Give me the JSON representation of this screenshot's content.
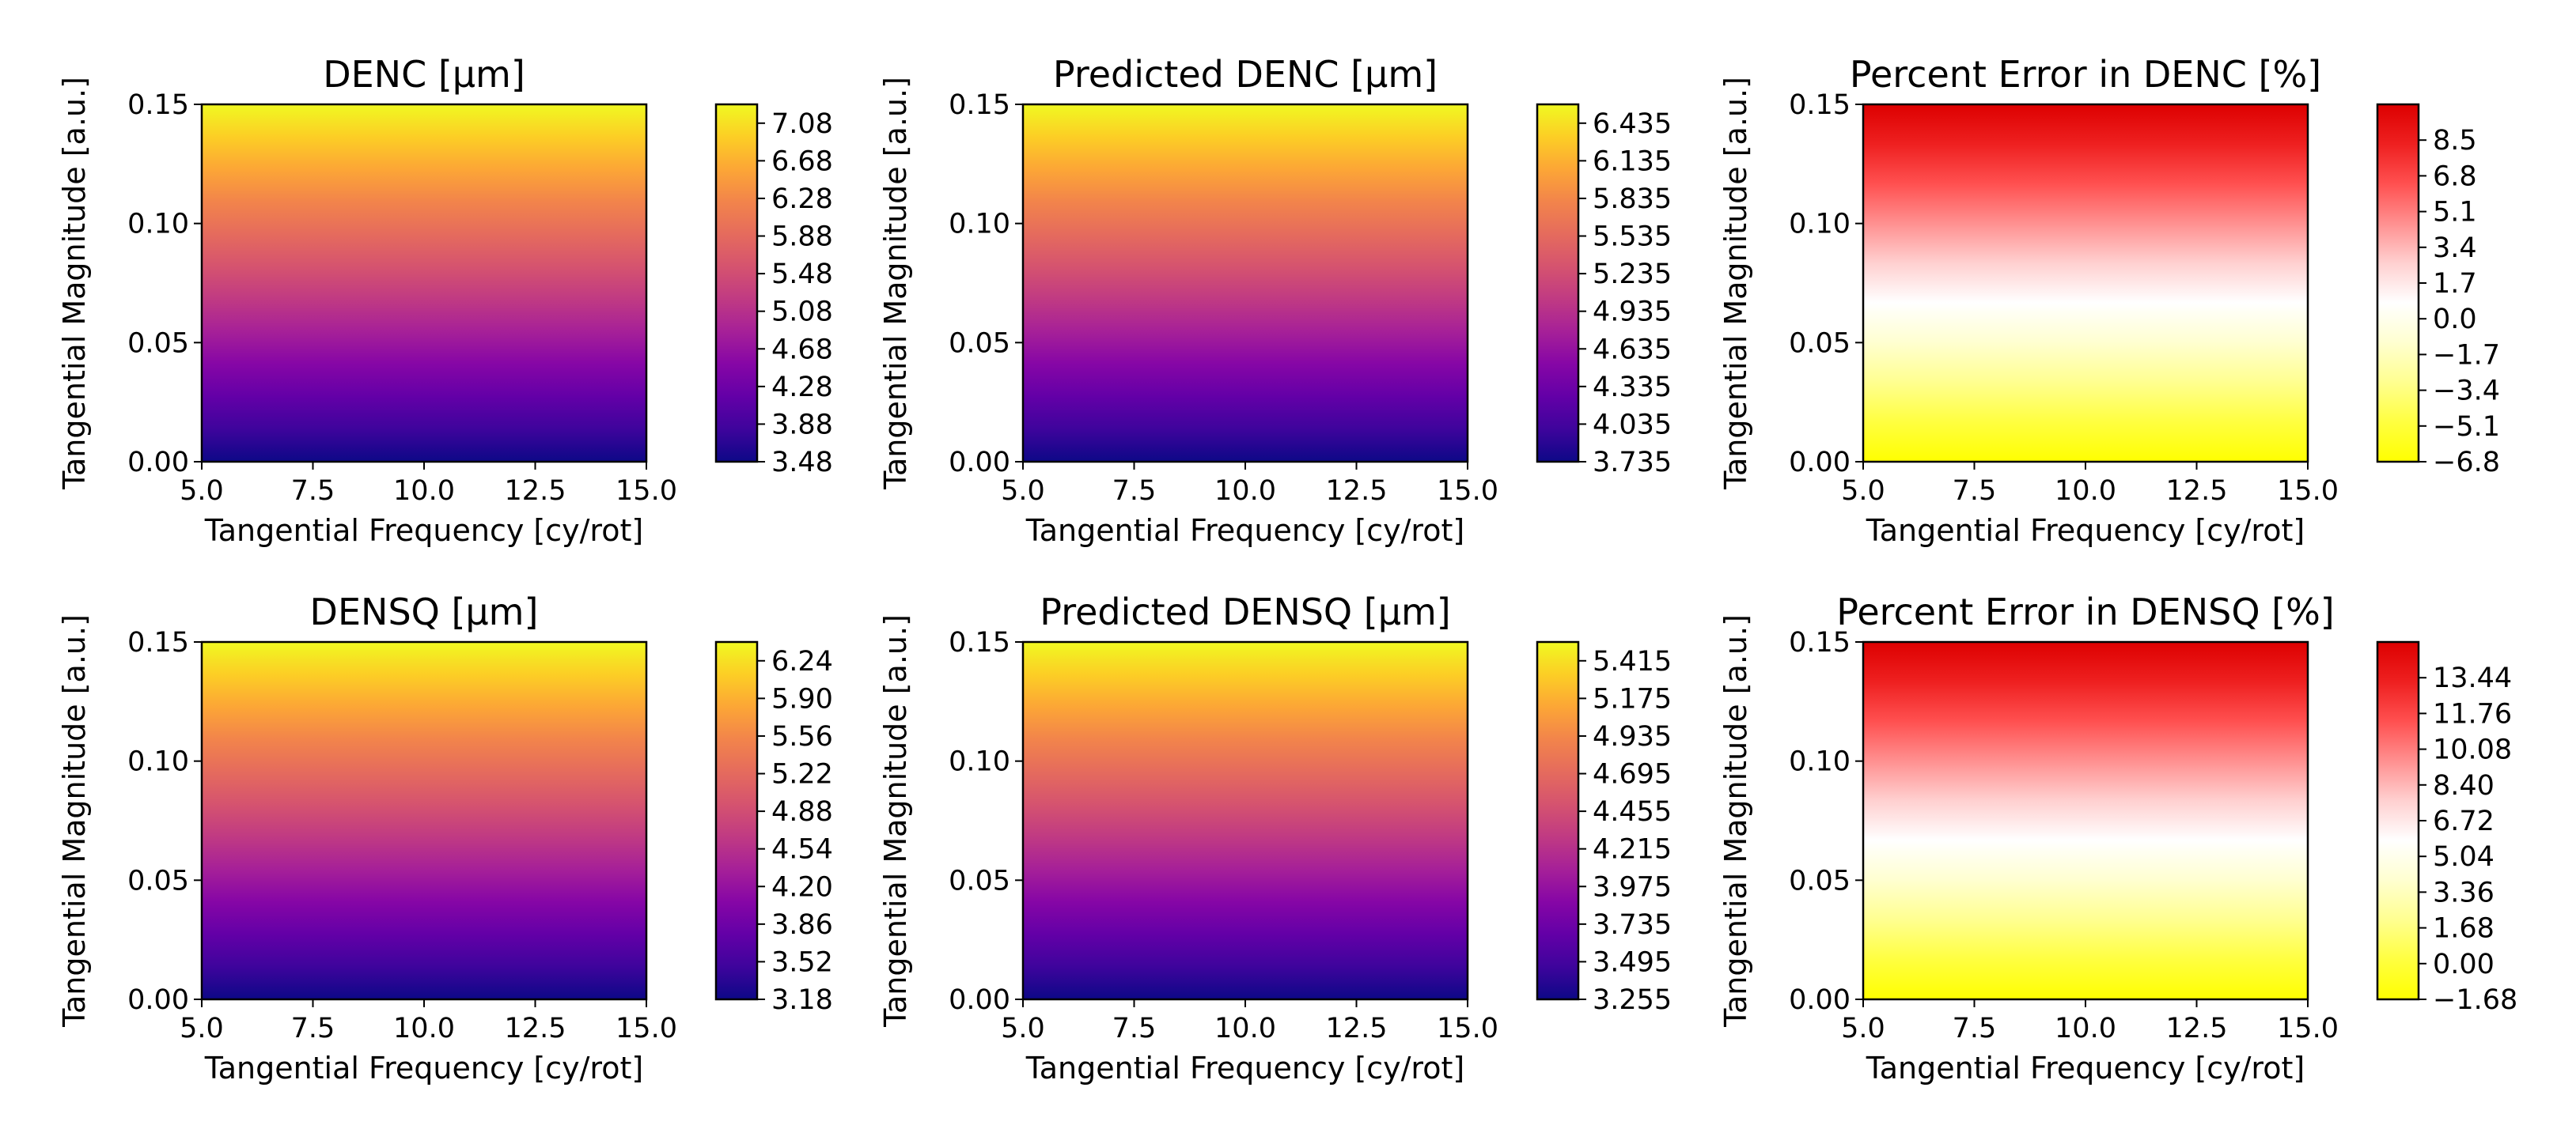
{
  "figure": {
    "layout": "2x3 grid of heatmaps with colorbars"
  },
  "chart_data": [
    {
      "type": "heatmap",
      "title": "DENC [µm]",
      "xlabel": "Tangential Frequency [cy/rot]",
      "ylabel": "Tangential Magnitude [a.u.]",
      "xlim": [
        5.0,
        15.0
      ],
      "ylim": [
        0.0,
        0.15
      ],
      "xticks": [
        "5.0",
        "7.5",
        "10.0",
        "12.5",
        "15.0"
      ],
      "yticks": [
        "0.00",
        "0.05",
        "0.10",
        "0.15"
      ],
      "colormap": "plasma",
      "value_range": [
        3.48,
        7.28
      ],
      "gradient": "varies along y only",
      "colorbar_ticks": [
        "3.48",
        "3.88",
        "4.28",
        "4.68",
        "5.08",
        "5.48",
        "5.88",
        "6.28",
        "6.68",
        "7.08"
      ]
    },
    {
      "type": "heatmap",
      "title": "Predicted DENC [µm]",
      "xlabel": "Tangential Frequency [cy/rot]",
      "ylabel": "Tangential Magnitude [a.u.]",
      "xlim": [
        5.0,
        15.0
      ],
      "ylim": [
        0.0,
        0.15
      ],
      "xticks": [
        "5.0",
        "7.5",
        "10.0",
        "12.5",
        "15.0"
      ],
      "yticks": [
        "0.00",
        "0.05",
        "0.10",
        "0.15"
      ],
      "colormap": "plasma",
      "value_range": [
        3.735,
        6.585
      ],
      "gradient": "varies along y only",
      "colorbar_ticks": [
        "3.735",
        "4.035",
        "4.335",
        "4.635",
        "4.935",
        "5.235",
        "5.535",
        "5.835",
        "6.135",
        "6.435"
      ]
    },
    {
      "type": "heatmap",
      "title": "Percent Error in DENC [%]",
      "xlabel": "Tangential Frequency [cy/rot]",
      "ylabel": "Tangential Magnitude [a.u.]",
      "xlim": [
        5.0,
        15.0
      ],
      "ylim": [
        0.0,
        0.15
      ],
      "xticks": [
        "5.0",
        "7.5",
        "10.0",
        "12.5",
        "15.0"
      ],
      "yticks": [
        "0.00",
        "0.05",
        "0.10",
        "0.15"
      ],
      "colormap": "yellow-white-red",
      "value_range": [
        -6.8,
        10.2
      ],
      "gradient": "varies along y only",
      "colorbar_ticks": [
        "−6.8",
        "−5.1",
        "−3.4",
        "−1.7",
        "0.0",
        "1.7",
        "3.4",
        "5.1",
        "6.8",
        "8.5"
      ]
    },
    {
      "type": "heatmap",
      "title": "DENSQ [µm]",
      "xlabel": "Tangential Frequency [cy/rot]",
      "ylabel": "Tangential Magnitude [a.u.]",
      "xlim": [
        5.0,
        15.0
      ],
      "ylim": [
        0.0,
        0.15
      ],
      "xticks": [
        "5.0",
        "7.5",
        "10.0",
        "12.5",
        "15.0"
      ],
      "yticks": [
        "0.00",
        "0.05",
        "0.10",
        "0.15"
      ],
      "colormap": "plasma",
      "value_range": [
        3.18,
        6.41
      ],
      "gradient": "varies along y only",
      "colorbar_ticks": [
        "3.18",
        "3.52",
        "3.86",
        "4.20",
        "4.54",
        "4.88",
        "5.22",
        "5.56",
        "5.90",
        "6.24"
      ]
    },
    {
      "type": "heatmap",
      "title": "Predicted DENSQ [µm]",
      "xlabel": "Tangential Frequency [cy/rot]",
      "ylabel": "Tangential Magnitude [a.u.]",
      "xlim": [
        5.0,
        15.0
      ],
      "ylim": [
        0.0,
        0.15
      ],
      "xticks": [
        "5.0",
        "7.5",
        "10.0",
        "12.5",
        "15.0"
      ],
      "yticks": [
        "0.00",
        "0.05",
        "0.10",
        "0.15"
      ],
      "colormap": "plasma",
      "value_range": [
        3.255,
        5.535
      ],
      "gradient": "varies along y only",
      "colorbar_ticks": [
        "3.255",
        "3.495",
        "3.735",
        "3.975",
        "4.215",
        "4.455",
        "4.695",
        "4.935",
        "5.175",
        "5.415"
      ]
    },
    {
      "type": "heatmap",
      "title": "Percent Error in DENSQ [%]",
      "xlabel": "Tangential Frequency [cy/rot]",
      "ylabel": "Tangential Magnitude [a.u.]",
      "xlim": [
        5.0,
        15.0
      ],
      "ylim": [
        0.0,
        0.15
      ],
      "xticks": [
        "5.0",
        "7.5",
        "10.0",
        "12.5",
        "15.0"
      ],
      "yticks": [
        "0.00",
        "0.05",
        "0.10",
        "0.15"
      ],
      "colormap": "yellow-white-red",
      "value_range": [
        -1.68,
        15.12
      ],
      "gradient": "varies along y only",
      "colorbar_ticks": [
        "−1.68",
        "0.00",
        "1.68",
        "3.36",
        "5.04",
        "6.72",
        "8.40",
        "10.08",
        "11.76",
        "13.44"
      ]
    }
  ]
}
